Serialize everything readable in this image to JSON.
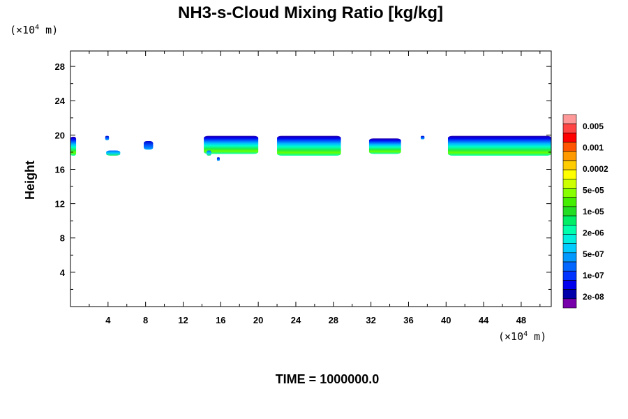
{
  "chart_data": {
    "type": "heatmap",
    "title": "NH3-s-Cloud Mixing Ratio [kg/kg]",
    "xlabel": "",
    "ylabel": "Height",
    "x_unit": {
      "prefix": "(×10",
      "exp": "4",
      "suffix": " m)"
    },
    "y_unit": {
      "prefix": "(×10",
      "exp": "4",
      "suffix": " m)"
    },
    "xlim": [
      0,
      51.2
    ],
    "ylim": [
      0,
      29.8
    ],
    "x_ticks": [
      4,
      8,
      12,
      16,
      20,
      24,
      28,
      32,
      36,
      40,
      44,
      48
    ],
    "y_ticks": [
      4,
      8,
      12,
      16,
      20,
      24,
      28
    ],
    "colorbar": {
      "colors": [
        "#ff9999",
        "#ff4444",
        "#ff0000",
        "#ff5500",
        "#ff9900",
        "#ffcc00",
        "#ffff00",
        "#ccff00",
        "#88ff00",
        "#44ee00",
        "#22dd22",
        "#00ee66",
        "#00ffaa",
        "#00eedd",
        "#00ccff",
        "#0099ff",
        "#0066ff",
        "#0033ff",
        "#0000ee",
        "#0000aa",
        "#7700aa"
      ],
      "labels": [
        "0.005",
        "0.001",
        "0.0002",
        "5e-05",
        "1e-05",
        "2e-06",
        "5e-07",
        "1e-07",
        "2e-08"
      ]
    },
    "cloud_regions": [
      {
        "x": [
          0,
          0.6
        ],
        "y_top": 19.8,
        "y_bottom": 17.6,
        "level": "high"
      },
      {
        "x": [
          3.7,
          4.1
        ],
        "y_top": 19.9,
        "y_bottom": 19.4,
        "level": "low"
      },
      {
        "x": [
          3.8,
          5.3
        ],
        "y_top": 18.2,
        "y_bottom": 17.6,
        "level": "mid"
      },
      {
        "x": [
          7.8,
          8.8
        ],
        "y_top": 19.3,
        "y_bottom": 18.3,
        "level": "low"
      },
      {
        "x": [
          14.2,
          20.0
        ],
        "y_top": 19.9,
        "y_bottom": 17.8,
        "level": "high"
      },
      {
        "x": [
          14.5,
          15.0
        ],
        "y_top": 18.2,
        "y_bottom": 17.6,
        "level": "mid"
      },
      {
        "x": [
          15.6,
          15.9
        ],
        "y_top": 17.4,
        "y_bottom": 17.0,
        "level": "low"
      },
      {
        "x": [
          22.0,
          28.8
        ],
        "y_top": 19.9,
        "y_bottom": 17.6,
        "level": "high"
      },
      {
        "x": [
          31.8,
          35.2
        ],
        "y_top": 19.6,
        "y_bottom": 17.8,
        "level": "high"
      },
      {
        "x": [
          37.3,
          37.7
        ],
        "y_top": 19.9,
        "y_bottom": 19.5,
        "level": "low"
      },
      {
        "x": [
          40.2,
          51.2
        ],
        "y_top": 19.9,
        "y_bottom": 17.6,
        "level": "high"
      }
    ]
  },
  "footer": {
    "time_label": "TIME = 1000000.0"
  }
}
